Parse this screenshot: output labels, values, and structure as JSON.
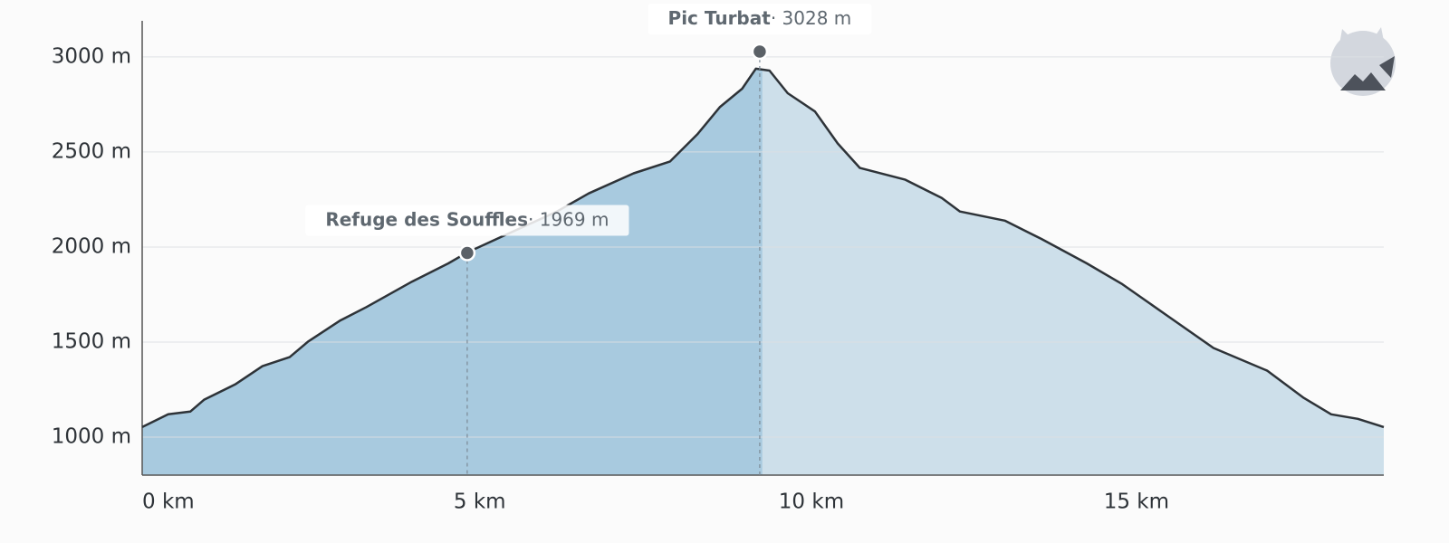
{
  "chart_data": {
    "type": "area",
    "x": [
      0,
      0.4,
      0.74,
      0.95,
      1.43,
      1.85,
      2.27,
      2.55,
      3.04,
      3.45,
      4.15,
      4.71,
      5.0,
      5.61,
      6.38,
      6.87,
      7.56,
      8.12,
      8.54,
      8.89,
      9.23,
      9.44,
      9.65,
      9.93,
      10.35,
      10.7,
      11.04,
      11.74,
      12.3,
      12.58,
      13.27,
      13.83,
      14.53,
      15.08,
      15.78,
      16.48,
      17.31,
      17.87,
      18.29,
      18.7,
      19.1
    ],
    "values": [
      1053,
      1120,
      1134,
      1196,
      1277,
      1373,
      1421,
      1502,
      1612,
      1684,
      1818,
      1914,
      1971,
      2067,
      2187,
      2282,
      2388,
      2450,
      2593,
      2737,
      2833,
      2938,
      2928,
      2809,
      2713,
      2545,
      2416,
      2354,
      2258,
      2187,
      2139,
      2043,
      1914,
      1804,
      1636,
      1469,
      1349,
      1206,
      1120,
      1096,
      1053
    ],
    "xlim": [
      0,
      19.1
    ],
    "ylim": [
      800,
      3190
    ],
    "xticks": [
      {
        "value": 0,
        "label": "0 km"
      },
      {
        "value": 5,
        "label": "5 km"
      },
      {
        "value": 10,
        "label": "10 km"
      },
      {
        "value": 15,
        "label": "15 km"
      }
    ],
    "yticks": [
      {
        "value": 1000,
        "label": "1000 m"
      },
      {
        "value": 1500,
        "label": "1500 m"
      },
      {
        "value": 2000,
        "label": "2000 m"
      },
      {
        "value": 2500,
        "label": "2500 m"
      },
      {
        "value": 3000,
        "label": "3000 m"
      }
    ],
    "grid": true,
    "color": "#2e3338",
    "fill_done": "#a8cadf",
    "fill_rest": "#cddfea",
    "annotations": [
      {
        "label": "Refuge des Souffles",
        "x": 5.0,
        "value": 1969,
        "value_label": "· 1969 m"
      },
      {
        "label": "Pic Turbat",
        "x": 9.5,
        "value": 3028,
        "value_label": "· 3028 m"
      }
    ]
  }
}
